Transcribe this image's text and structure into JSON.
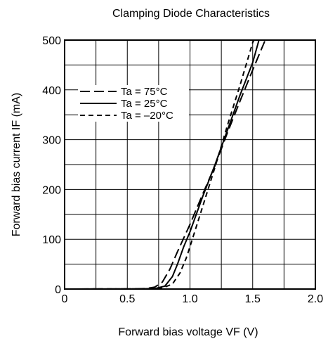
{
  "chart_data": {
    "type": "line",
    "title": "Clamping Diode Characteristics",
    "xlabel": "Forward bias voltage  VF (V)",
    "ylabel": "Forward bias current  IF (mA)",
    "xlim": [
      0,
      2.0
    ],
    "ylim": [
      0,
      500
    ],
    "x_ticks": [
      "0",
      "0.5",
      "1.0",
      "1.5",
      "2.0"
    ],
    "x_tick_values": [
      0,
      0.5,
      1.0,
      1.5,
      2.0
    ],
    "y_ticks": [
      "0",
      "100",
      "200",
      "300",
      "400",
      "500"
    ],
    "y_tick_values": [
      0,
      100,
      200,
      300,
      400,
      500
    ],
    "grid": true,
    "grid_x_step": 0.25,
    "grid_y_step": 50,
    "legend_position": "upper-left",
    "series": [
      {
        "name": "Ta = 75°C",
        "dash": "long-dash",
        "points": [
          [
            0,
            0
          ],
          [
            0.55,
            0.3
          ],
          [
            0.65,
            1
          ],
          [
            0.72,
            4
          ],
          [
            0.78,
            14
          ],
          [
            0.84,
            40
          ],
          [
            0.9,
            75
          ],
          [
            1.0,
            130
          ],
          [
            1.1,
            190
          ],
          [
            1.2,
            248
          ],
          [
            1.3,
            315
          ],
          [
            1.4,
            378
          ],
          [
            1.5,
            440
          ],
          [
            1.6,
            500
          ]
        ]
      },
      {
        "name": "Ta = 25°C",
        "dash": "solid",
        "points": [
          [
            0,
            0
          ],
          [
            0.6,
            0.3
          ],
          [
            0.72,
            1
          ],
          [
            0.8,
            6
          ],
          [
            0.86,
            25
          ],
          [
            0.9,
            50
          ],
          [
            0.95,
            85
          ],
          [
            1.0,
            115
          ],
          [
            1.1,
            185
          ],
          [
            1.2,
            250
          ],
          [
            1.3,
            320
          ],
          [
            1.4,
            390
          ],
          [
            1.5,
            455
          ],
          [
            1.55,
            500
          ]
        ]
      },
      {
        "name": "Ta = –20°C",
        "dash": "short-dash",
        "points": [
          [
            0,
            0
          ],
          [
            0.65,
            0.3
          ],
          [
            0.78,
            2
          ],
          [
            0.86,
            10
          ],
          [
            0.92,
            32
          ],
          [
            0.97,
            62
          ],
          [
            1.0,
            85
          ],
          [
            1.1,
            165
          ],
          [
            1.2,
            245
          ],
          [
            1.3,
            330
          ],
          [
            1.4,
            410
          ],
          [
            1.5,
            495
          ],
          [
            1.51,
            500
          ]
        ]
      }
    ]
  }
}
